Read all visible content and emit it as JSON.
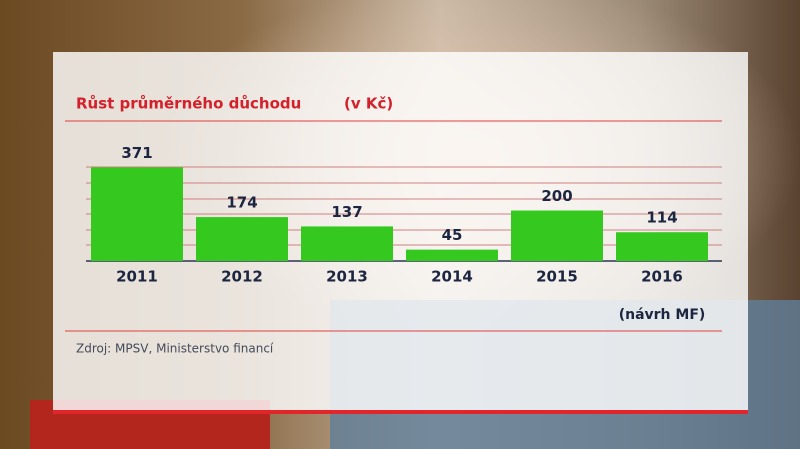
{
  "chart_data": {
    "type": "bar",
    "title": "Růst průměrného důchodu",
    "unit": "(v Kč)",
    "categories": [
      "2011",
      "2012",
      "2013",
      "2014",
      "2015",
      "2016"
    ],
    "values": [
      371,
      174,
      137,
      45,
      200,
      114
    ],
    "category_notes": [
      null,
      null,
      null,
      null,
      null,
      "(návrh MF)"
    ],
    "color": "#35c91f",
    "ylim": [
      0,
      420
    ],
    "source": "Zdroj: MPSV, Ministerstvo financí"
  }
}
